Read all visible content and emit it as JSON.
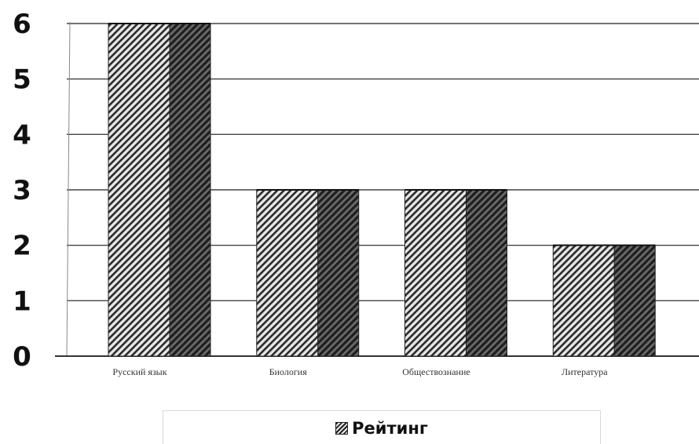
{
  "chart_data": {
    "type": "bar",
    "categories": [
      "Русский язык",
      "Биология",
      "Обществознание",
      "Литература"
    ],
    "series": [
      {
        "name": "Рейтинг",
        "values": [
          6,
          3,
          3,
          2
        ]
      }
    ],
    "title": "",
    "xlabel": "",
    "ylabel": "",
    "ylim": [
      0,
      6
    ],
    "yticks": [
      "0",
      "1",
      "2",
      "3",
      "4",
      "5",
      "6"
    ],
    "grid": true,
    "style": "3d-hatched",
    "legend_position": "bottom"
  },
  "legend": {
    "label": "Рейтинг"
  }
}
